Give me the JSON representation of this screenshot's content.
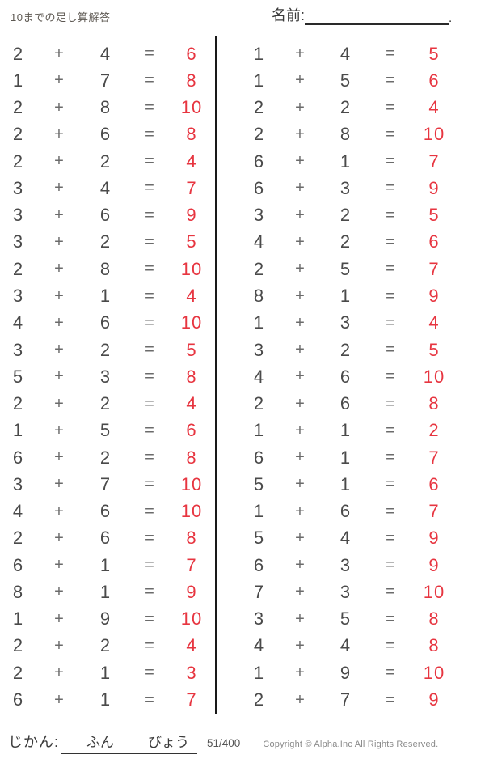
{
  "header": {
    "title": "10までの足し算解答",
    "name_label": "名前:",
    "name_line_suffix": "."
  },
  "symbols": {
    "plus": "+",
    "equals": "="
  },
  "colors": {
    "answer_red": "#e73540",
    "problem_text": "#4a4a4a",
    "divider": "#191919"
  },
  "problems": {
    "left": [
      {
        "a": "2",
        "b": "4",
        "ans": "6"
      },
      {
        "a": "1",
        "b": "7",
        "ans": "8"
      },
      {
        "a": "2",
        "b": "8",
        "ans": "10"
      },
      {
        "a": "2",
        "b": "6",
        "ans": "8"
      },
      {
        "a": "2",
        "b": "2",
        "ans": "4"
      },
      {
        "a": "3",
        "b": "4",
        "ans": "7"
      },
      {
        "a": "3",
        "b": "6",
        "ans": "9"
      },
      {
        "a": "3",
        "b": "2",
        "ans": "5"
      },
      {
        "a": "2",
        "b": "8",
        "ans": "10"
      },
      {
        "a": "3",
        "b": "1",
        "ans": "4"
      },
      {
        "a": "4",
        "b": "6",
        "ans": "10"
      },
      {
        "a": "3",
        "b": "2",
        "ans": "5"
      },
      {
        "a": "5",
        "b": "3",
        "ans": "8"
      },
      {
        "a": "2",
        "b": "2",
        "ans": "4"
      },
      {
        "a": "1",
        "b": "5",
        "ans": "6"
      },
      {
        "a": "6",
        "b": "2",
        "ans": "8"
      },
      {
        "a": "3",
        "b": "7",
        "ans": "10"
      },
      {
        "a": "4",
        "b": "6",
        "ans": "10"
      },
      {
        "a": "2",
        "b": "6",
        "ans": "8"
      },
      {
        "a": "6",
        "b": "1",
        "ans": "7"
      },
      {
        "a": "8",
        "b": "1",
        "ans": "9"
      },
      {
        "a": "1",
        "b": "9",
        "ans": "10"
      },
      {
        "a": "2",
        "b": "2",
        "ans": "4"
      },
      {
        "a": "2",
        "b": "1",
        "ans": "3"
      },
      {
        "a": "6",
        "b": "1",
        "ans": "7"
      }
    ],
    "right": [
      {
        "a": "1",
        "b": "4",
        "ans": "5"
      },
      {
        "a": "1",
        "b": "5",
        "ans": "6"
      },
      {
        "a": "2",
        "b": "2",
        "ans": "4"
      },
      {
        "a": "2",
        "b": "8",
        "ans": "10"
      },
      {
        "a": "6",
        "b": "1",
        "ans": "7"
      },
      {
        "a": "6",
        "b": "3",
        "ans": "9"
      },
      {
        "a": "3",
        "b": "2",
        "ans": "5"
      },
      {
        "a": "4",
        "b": "2",
        "ans": "6"
      },
      {
        "a": "2",
        "b": "5",
        "ans": "7"
      },
      {
        "a": "8",
        "b": "1",
        "ans": "9"
      },
      {
        "a": "1",
        "b": "3",
        "ans": "4"
      },
      {
        "a": "3",
        "b": "2",
        "ans": "5"
      },
      {
        "a": "4",
        "b": "6",
        "ans": "10"
      },
      {
        "a": "2",
        "b": "6",
        "ans": "8"
      },
      {
        "a": "1",
        "b": "1",
        "ans": "2"
      },
      {
        "a": "6",
        "b": "1",
        "ans": "7"
      },
      {
        "a": "5",
        "b": "1",
        "ans": "6"
      },
      {
        "a": "1",
        "b": "6",
        "ans": "7"
      },
      {
        "a": "5",
        "b": "4",
        "ans": "9"
      },
      {
        "a": "6",
        "b": "3",
        "ans": "9"
      },
      {
        "a": "7",
        "b": "3",
        "ans": "10"
      },
      {
        "a": "3",
        "b": "5",
        "ans": "8"
      },
      {
        "a": "4",
        "b": "4",
        "ans": "8"
      },
      {
        "a": "1",
        "b": "9",
        "ans": "10"
      },
      {
        "a": "2",
        "b": "7",
        "ans": "9"
      }
    ]
  },
  "footer": {
    "time_label": "じかん:",
    "minutes_label": "ふん",
    "seconds_label": "びょう",
    "page_number": "51/400",
    "copyright": "Copyright ©  Alpha.Inc All Rights Reserved."
  }
}
